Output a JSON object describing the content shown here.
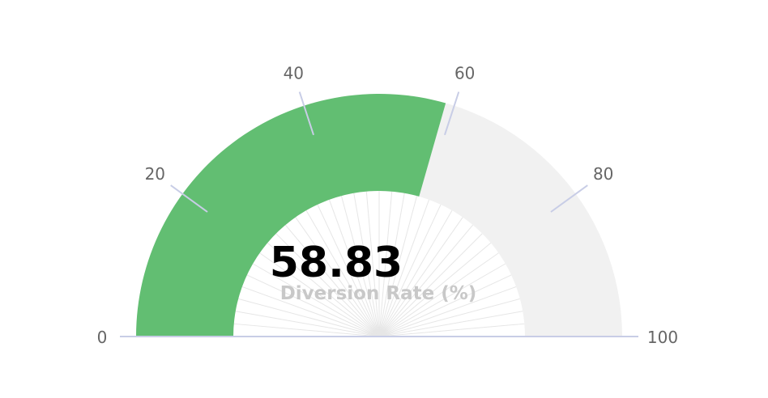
{
  "chart_data": {
    "type": "gauge",
    "value": 58.83,
    "value_label": "58.83",
    "label": "Diversion Rate (%)",
    "min": 0,
    "max": 100,
    "ticks": [
      0,
      20,
      40,
      60,
      80,
      100
    ],
    "tick_labels": [
      "0",
      "20",
      "40",
      "60",
      "80",
      "100"
    ],
    "colors": {
      "value_fill": "#62be72",
      "track_fill": "#f1f1f1",
      "tick_line": "#c8cde6",
      "ray_line": "#e6e6e6",
      "label_text": "#666666",
      "value_text": "#000000",
      "caption_text": "#c8c8c8"
    }
  }
}
